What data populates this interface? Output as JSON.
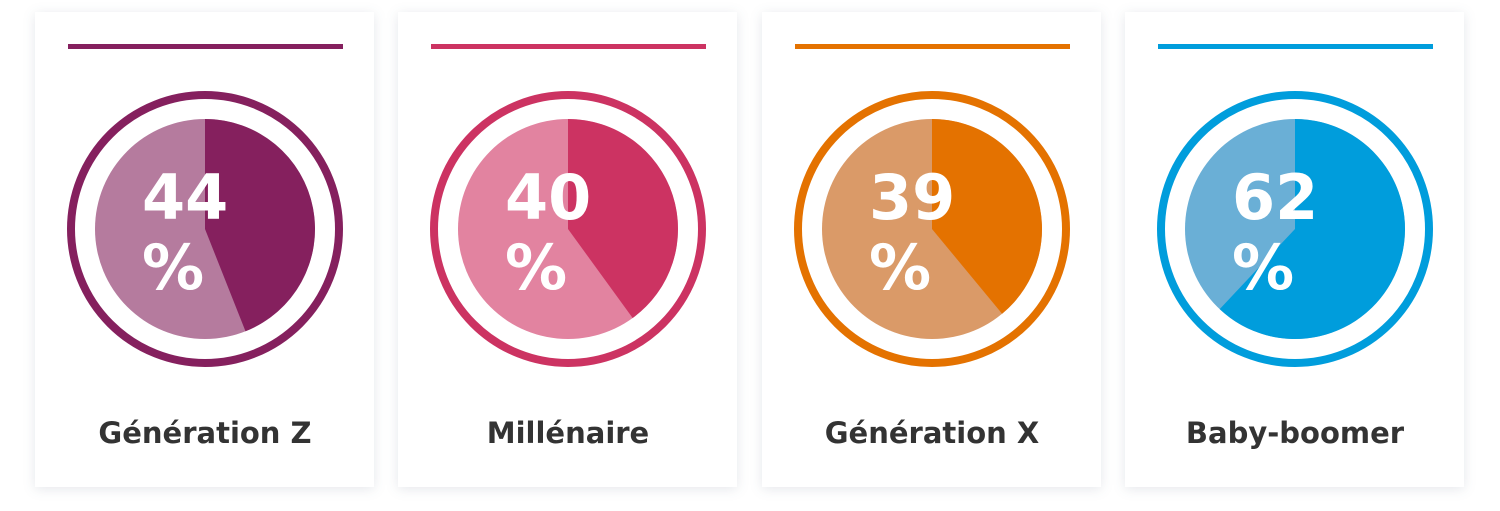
{
  "chart_data": [
    {
      "type": "pie",
      "title": "Génération Z",
      "values": [
        44
      ],
      "value_labels": [
        "44 %"
      ],
      "color": "#85205e",
      "light_color": "#b57b9e"
    },
    {
      "type": "pie",
      "title": "Millénaire",
      "values": [
        40
      ],
      "value_labels": [
        "40 %"
      ],
      "color": "#cc3362",
      "light_color": "#e283a0"
    },
    {
      "type": "pie",
      "title": "Génération X",
      "values": [
        39
      ],
      "value_labels": [
        "39 %"
      ],
      "color": "#e47200",
      "light_color": "#da9a68"
    },
    {
      "type": "pie",
      "title": "Baby-boomer",
      "values": [
        62
      ],
      "value_labels": [
        "62 %"
      ],
      "color": "#009ddc",
      "light_color": "#6aafd6"
    }
  ]
}
